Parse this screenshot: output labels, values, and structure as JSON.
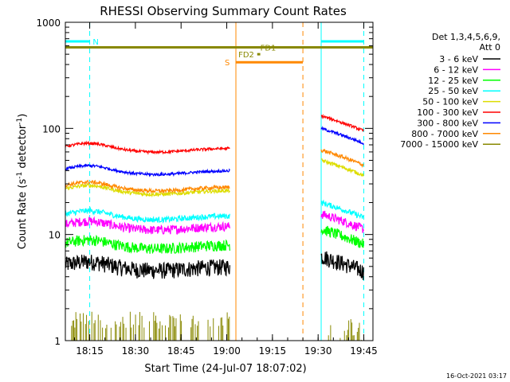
{
  "chart_data": {
    "type": "line",
    "title": "RHESSI Observing Summary Count Rates",
    "xlabel": "Start Time (24-Jul-07 18:07:02)",
    "ylabel_main": "Count Rate (s",
    "ylabel_sup1": "-1",
    "ylabel_mid": " detector",
    "ylabel_sup2": "-1",
    "ylabel_end": ")",
    "timestamp": "16-Oct-2021 03:17",
    "y_scale": "log",
    "ylim": [
      1,
      1000
    ],
    "xlim_minutes": [
      0,
      101
    ],
    "x_ticks": [
      {
        "minute": 8,
        "label": "18:15"
      },
      {
        "minute": 23,
        "label": "18:30"
      },
      {
        "minute": 38,
        "label": "18:45"
      },
      {
        "minute": 53,
        "label": "19:00"
      },
      {
        "minute": 68,
        "label": "19:15"
      },
      {
        "minute": 83,
        "label": "19:30"
      },
      {
        "minute": 98,
        "label": "19:45"
      }
    ],
    "y_ticks": [
      {
        "value": 1,
        "label": "1"
      },
      {
        "value": 10,
        "label": "10"
      },
      {
        "value": 100,
        "label": "100"
      },
      {
        "value": 1000,
        "label": "1000"
      }
    ],
    "legend": {
      "header1": "Det 1,3,4,5,6,9,",
      "header2": "Att 0",
      "placement": "right"
    },
    "series": [
      {
        "name": "3 - 6 keV",
        "color": "#000000",
        "level": 5.0,
        "noise": 0.18,
        "after": 5.0
      },
      {
        "name": "6 - 12 keV",
        "color": "#ff00ff",
        "level": 12.0,
        "noise": 0.1,
        "after": 12.5
      },
      {
        "name": "12 - 25 keV",
        "color": "#00ff00",
        "level": 8.0,
        "noise": 0.12,
        "after": 9.0
      },
      {
        "name": "25 - 50 keV",
        "color": "#00ffff",
        "level": 15.0,
        "noise": 0.06,
        "after": 16.0
      },
      {
        "name": "50 - 100 keV",
        "color": "#dddd00",
        "level": 26.0,
        "noise": 0.04,
        "after": 40.0
      },
      {
        "name": "100 - 300 keV",
        "color": "#ff0000",
        "level": 65.0,
        "noise": 0.03,
        "after": 105.0
      },
      {
        "name": "300 - 800 keV",
        "color": "#0000ff",
        "level": 40.0,
        "noise": 0.03,
        "after": 80.0
      },
      {
        "name": "800 - 7000 keV",
        "color": "#ff8800",
        "level": 28.0,
        "noise": 0.04,
        "after": 50.0
      },
      {
        "name": "7000 - 15000 keV",
        "color": "#888800",
        "level": 1.3,
        "noise": 0.0,
        "after": 1.0
      }
    ],
    "segments": {
      "first": [
        0,
        54
      ],
      "second": [
        84,
        98
      ]
    },
    "flags": [
      {
        "label": "N",
        "color": "#00ffff",
        "y": 660,
        "spans": [
          [
            0,
            8
          ],
          [
            84,
            98
          ]
        ]
      },
      {
        "label": "S",
        "color": "#ff8800",
        "y": 420,
        "spans": [
          [
            56,
            78
          ]
        ]
      },
      {
        "label": "FD1",
        "color": "#888800",
        "y": 580,
        "spans": [
          [
            0,
            101
          ]
        ]
      },
      {
        "label": "FD2",
        "color": "#888800",
        "y": 500,
        "spans": [
          [
            63,
            64
          ]
        ]
      }
    ],
    "vlines": [
      {
        "minute": 0,
        "color": "#00ffff",
        "style": "solid"
      },
      {
        "minute": 8,
        "color": "#00ffff",
        "style": "dashed"
      },
      {
        "minute": 56,
        "color": "#ff8800",
        "style": "solid"
      },
      {
        "minute": 78,
        "color": "#ff8800",
        "style": "dashed"
      },
      {
        "minute": 84,
        "color": "#00ffff",
        "style": "solid"
      },
      {
        "minute": 98,
        "color": "#00ffff",
        "style": "dashed"
      }
    ]
  }
}
